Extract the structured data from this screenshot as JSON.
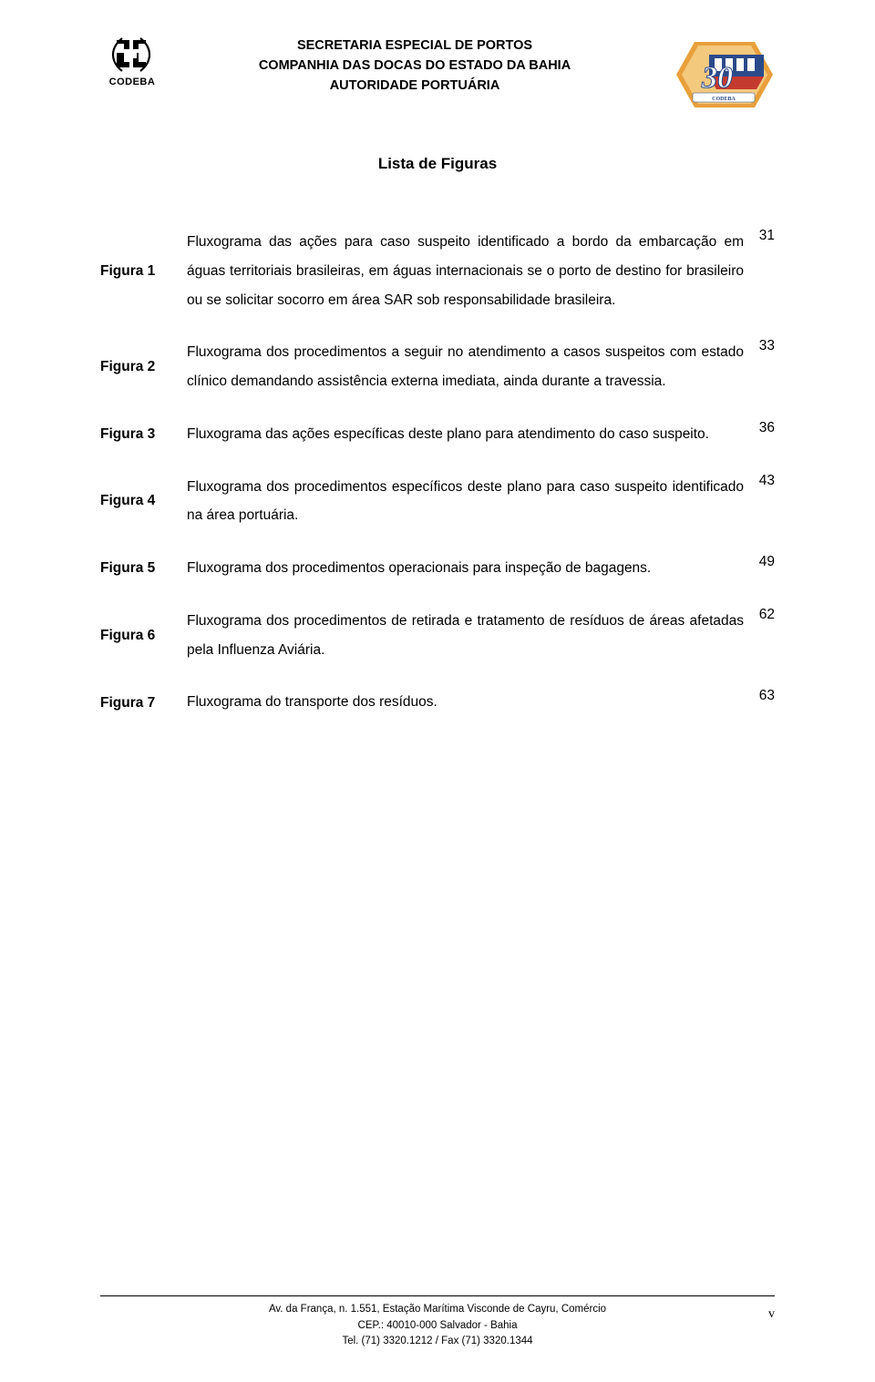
{
  "header": {
    "left_logo_label": "CODEBA",
    "lines": [
      "SECRETARIA ESPECIAL DE PORTOS",
      "COMPANHIA DAS DOCAS DO ESTADO DA BAHIA",
      "AUTORIDADE PORTUÁRIA"
    ]
  },
  "title": "Lista de Figuras",
  "figures": [
    {
      "label": "Figura 1",
      "desc": "Fluxograma das ações para caso suspeito identificado a bordo da embarcação em águas territoriais brasileiras, em águas internacionais se o porto de destino for brasileiro ou se solicitar socorro em área SAR sob responsabilidade brasileira.",
      "page": "31",
      "align": "mid"
    },
    {
      "label": "Figura 2",
      "desc": "Fluxograma dos procedimentos a seguir no atendimento a casos suspeitos com estado clínico demandando assistência externa imediata, ainda durante a travessia.",
      "page": "33",
      "align": "mid"
    },
    {
      "label": "Figura 3",
      "desc": "Fluxograma das ações específicas deste plano para atendimento do caso suspeito.",
      "page": "36",
      "align": "mid"
    },
    {
      "label": "Figura 4",
      "desc": "Fluxograma dos procedimentos específicos deste plano para caso suspeito identificado na área portuária.",
      "page": "43",
      "align": "mid"
    },
    {
      "label": "Figura 5",
      "desc": "Fluxograma dos procedimentos operacionais para inspeção de bagagens.",
      "page": "49",
      "align": "mid"
    },
    {
      "label": "Figura 6",
      "desc": "Fluxograma dos procedimentos de retirada e tratamento de resíduos de áreas afetadas pela Influenza Aviária.",
      "page": "62",
      "align": "mid"
    },
    {
      "label": "Figura 7",
      "desc": "Fluxograma do transporte dos resíduos.",
      "page": "63",
      "align": "top"
    }
  ],
  "footer": {
    "lines": [
      "Av. da França, n. 1.551, Estação Marítima Visconde de Cayru, Comércio",
      "CEP.: 40010-000 Salvador - Bahia",
      "Tel. (71) 3320.1212 / Fax (71) 3320.1344"
    ],
    "page_number": "v"
  },
  "colors": {
    "text": "#000000",
    "background": "#ffffff",
    "ship_orange": "#e8a03c",
    "ship_blue": "#2b4a8a",
    "ship_red": "#c43a2e"
  }
}
